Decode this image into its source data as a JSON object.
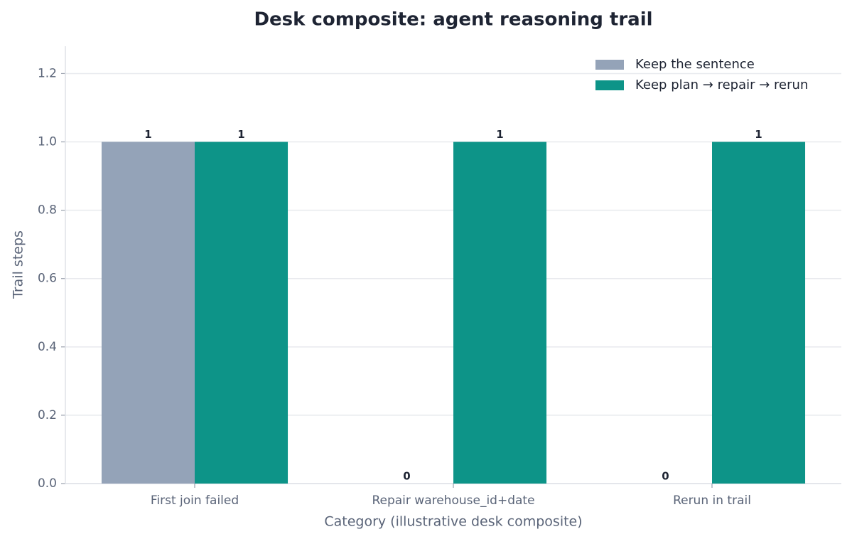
{
  "chart_data": {
    "type": "bar",
    "title": "Desk composite: agent reasoning trail",
    "x_label": "Category (illustrative desk composite)",
    "y_label": "Trail steps",
    "categories": [
      "First join failed",
      "Repair warehouse_id+date",
      "Rerun in trail"
    ],
    "series": [
      {
        "name": "Keep the sentence",
        "color": "#94a3b8",
        "values": [
          1,
          0,
          0
        ]
      },
      {
        "name": "Keep plan → repair → rerun",
        "color": "#0d9488",
        "values": [
          1,
          1,
          1
        ]
      }
    ],
    "ylim": [
      0,
      1.28
    ],
    "yticks": [
      {
        "value": 0,
        "label": "0.0"
      },
      {
        "value": 0.2,
        "label": "0.2"
      },
      {
        "value": 0.4,
        "label": "0.4"
      },
      {
        "value": 0.6,
        "label": "0.6"
      },
      {
        "value": 0.8,
        "label": "0.8"
      },
      {
        "value": 1,
        "label": "1.0"
      },
      {
        "value": 1.2,
        "label": "1.2"
      }
    ],
    "grid": true,
    "legend": "upper right"
  }
}
